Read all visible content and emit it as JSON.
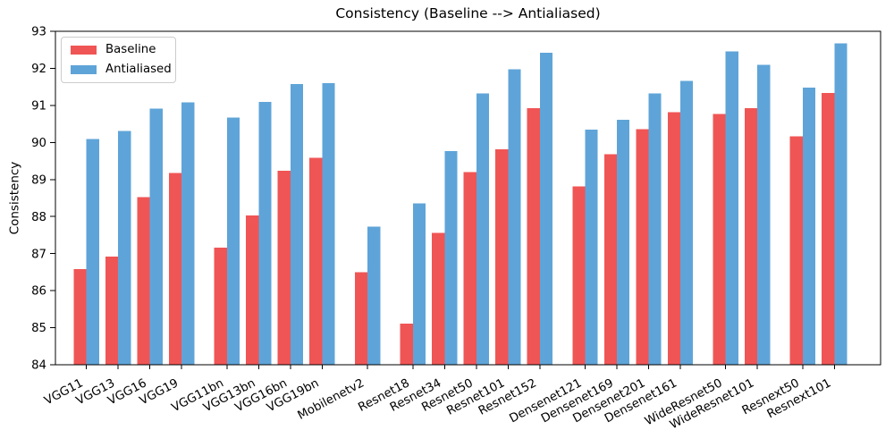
{
  "chart_data": {
    "type": "bar",
    "title": "Consistency (Baseline --> Antialiased)",
    "ylabel": "Consistency",
    "ylim": [
      84,
      93
    ],
    "yticks": [
      84,
      85,
      86,
      87,
      88,
      89,
      90,
      91,
      92,
      93
    ],
    "grid": false,
    "legend_position": "upper left",
    "categories": [
      "VGG11",
      "VGG13",
      "VGG16",
      "VGG19",
      "VGG11bn",
      "VGG13bn",
      "VGG16bn",
      "VGG19bn",
      "Mobilenetv2",
      "Resnet18",
      "Resnet34",
      "Resnet50",
      "Resnet101",
      "Resnet152",
      "Densenet121",
      "Densenet169",
      "Densenet201",
      "Densenet161",
      "WideResnet50",
      "WideResnet101",
      "Resnext50",
      "Resnext101"
    ],
    "group_sizes": [
      4,
      4,
      1,
      5,
      4,
      2,
      2
    ],
    "series": [
      {
        "name": "Baseline",
        "color": "#f05555",
        "values": [
          86.58,
          86.92,
          88.52,
          89.17,
          87.16,
          88.03,
          89.24,
          89.59,
          86.5,
          85.11,
          87.56,
          89.2,
          89.81,
          90.92,
          88.81,
          89.68,
          90.36,
          90.82,
          90.77,
          90.93,
          90.17,
          91.33
        ]
      },
      {
        "name": "Antialiased",
        "color": "#5fa4d8",
        "values": [
          90.09,
          90.31,
          90.91,
          91.08,
          90.67,
          91.09,
          91.58,
          91.6,
          87.73,
          88.36,
          89.77,
          91.32,
          91.97,
          92.42,
          90.35,
          90.61,
          91.32,
          91.66,
          92.46,
          92.1,
          91.48,
          92.67
        ]
      }
    ]
  }
}
